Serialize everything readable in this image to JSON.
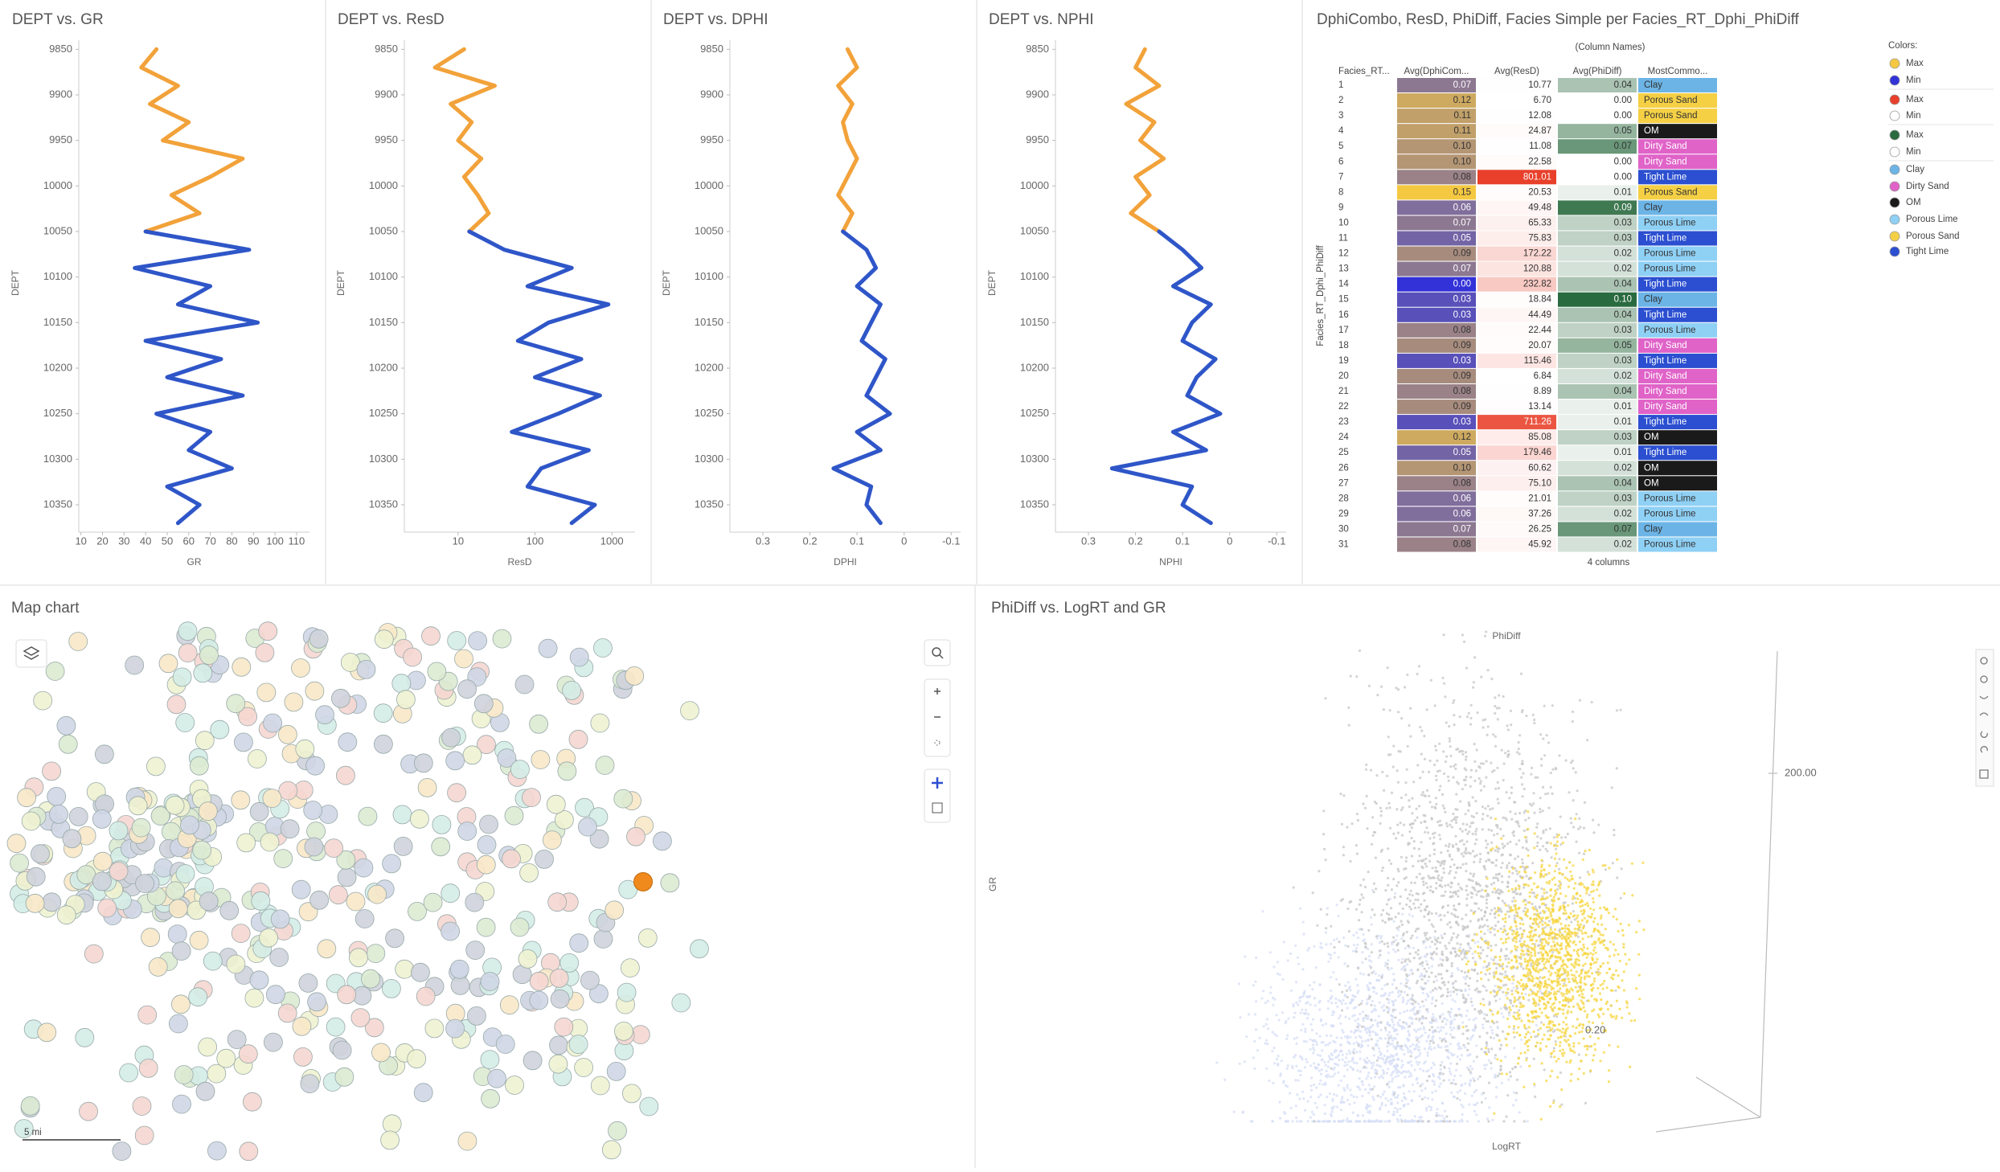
{
  "well_logs": [
    {
      "title": "DEPT vs. GR",
      "x_label": "GR",
      "y_label": "DEPT",
      "log_x": false,
      "xlim": [
        9,
        116
      ],
      "xticks": [
        10,
        20,
        30,
        40,
        50,
        60,
        70,
        80,
        90,
        100,
        110
      ],
      "ylim": [
        10380,
        9840
      ],
      "yticks": [
        9850,
        9900,
        9950,
        10000,
        10050,
        10100,
        10150,
        10200,
        10250,
        10300,
        10350
      ],
      "segments": [
        {
          "color": "#f2a23a",
          "depth": [
            9850,
            9870,
            9890,
            9910,
            9930,
            9950,
            9970,
            9990,
            10010,
            10030,
            10050
          ],
          "values": [
            45,
            38,
            55,
            42,
            60,
            48,
            85,
            70,
            52,
            65,
            40
          ]
        },
        {
          "color": "#2f56c8",
          "depth": [
            10050,
            10070,
            10090,
            10110,
            10130,
            10150,
            10170,
            10190,
            10210,
            10230,
            10250,
            10270,
            10290,
            10310,
            10330,
            10350,
            10370
          ],
          "values": [
            40,
            88,
            35,
            70,
            55,
            92,
            40,
            75,
            50,
            85,
            45,
            70,
            60,
            80,
            50,
            65,
            55
          ]
        }
      ]
    },
    {
      "title": "DEPT vs. ResD",
      "x_label": "ResD",
      "y_label": "DEPT",
      "log_x": true,
      "xlim": [
        2,
        2000
      ],
      "xticks": [
        10,
        100,
        1000
      ],
      "ylim": [
        10380,
        9840
      ],
      "yticks": [
        9850,
        9900,
        9950,
        10000,
        10050,
        10100,
        10150,
        10200,
        10250,
        10300,
        10350
      ],
      "segments": [
        {
          "color": "#f2a23a",
          "depth": [
            9850,
            9870,
            9890,
            9910,
            9930,
            9950,
            9970,
            9990,
            10010,
            10030,
            10050
          ],
          "values": [
            12,
            5,
            30,
            8,
            15,
            10,
            20,
            12,
            18,
            25,
            14
          ]
        },
        {
          "color": "#2f56c8",
          "depth": [
            10050,
            10070,
            10090,
            10110,
            10130,
            10150,
            10170,
            10190,
            10210,
            10230,
            10250,
            10270,
            10290,
            10310,
            10330,
            10350,
            10370
          ],
          "values": [
            14,
            40,
            300,
            80,
            900,
            150,
            60,
            400,
            100,
            700,
            200,
            50,
            500,
            120,
            80,
            600,
            300
          ]
        }
      ]
    },
    {
      "title": "DEPT vs. DPHI",
      "x_label": "DPHI",
      "y_label": "DEPT",
      "log_x": false,
      "xlim": [
        0.37,
        -0.12
      ],
      "xticks": [
        0.3,
        0.2,
        0.1,
        0,
        -0.1
      ],
      "ylim": [
        10380,
        9840
      ],
      "yticks": [
        9850,
        9900,
        9950,
        10000,
        10050,
        10100,
        10150,
        10200,
        10250,
        10300,
        10350
      ],
      "segments": [
        {
          "color": "#f2a23a",
          "depth": [
            9850,
            9870,
            9890,
            9910,
            9930,
            9950,
            9970,
            9990,
            10010,
            10030,
            10050
          ],
          "values": [
            0.12,
            0.1,
            0.14,
            0.11,
            0.13,
            0.12,
            0.1,
            0.12,
            0.14,
            0.11,
            0.13
          ]
        },
        {
          "color": "#2f56c8",
          "depth": [
            10050,
            10070,
            10090,
            10110,
            10130,
            10150,
            10170,
            10190,
            10210,
            10230,
            10250,
            10270,
            10290,
            10310,
            10330,
            10350,
            10370
          ],
          "values": [
            0.13,
            0.08,
            0.06,
            0.1,
            0.05,
            0.07,
            0.09,
            0.04,
            0.06,
            0.08,
            0.03,
            0.1,
            0.05,
            0.15,
            0.07,
            0.08,
            0.05
          ]
        }
      ]
    },
    {
      "title": "DEPT vs. NPHI",
      "x_label": "NPHI",
      "y_label": "DEPT",
      "log_x": false,
      "xlim": [
        0.37,
        -0.12
      ],
      "xticks": [
        0.3,
        0.2,
        0.1,
        0,
        -0.1
      ],
      "ylim": [
        10380,
        9840
      ],
      "yticks": [
        9850,
        9900,
        9950,
        10000,
        10050,
        10100,
        10150,
        10200,
        10250,
        10300,
        10350
      ],
      "segments": [
        {
          "color": "#f2a23a",
          "depth": [
            9850,
            9870,
            9890,
            9910,
            9930,
            9950,
            9970,
            9990,
            10010,
            10030,
            10050
          ],
          "values": [
            0.18,
            0.2,
            0.15,
            0.22,
            0.16,
            0.19,
            0.14,
            0.2,
            0.17,
            0.21,
            0.15
          ]
        },
        {
          "color": "#2f56c8",
          "depth": [
            10050,
            10070,
            10090,
            10110,
            10130,
            10150,
            10170,
            10190,
            10210,
            10230,
            10250,
            10270,
            10290,
            10310,
            10330,
            10350,
            10370
          ],
          "values": [
            0.15,
            0.1,
            0.06,
            0.12,
            0.04,
            0.08,
            0.1,
            0.03,
            0.07,
            0.09,
            0.02,
            0.12,
            0.05,
            0.25,
            0.08,
            0.1,
            0.04
          ]
        }
      ]
    }
  ],
  "table": {
    "title": "DphiCombo, ResD, PhiDiff, Facies Simple per Facies_RT_Dphi_PhiDiff",
    "column_header": "(Column Names)",
    "row_axis_label": "Facies_RT_Dphi_PhiDiff",
    "footer": "4 columns",
    "columns": [
      "Facies_RT...",
      "Avg(DphiCom...",
      "Avg(ResD)",
      "Avg(PhiDiff)",
      "MostCommo..."
    ],
    "rows": [
      [
        "1",
        "0.07",
        "10.77",
        "0.04",
        "Clay"
      ],
      [
        "2",
        "0.12",
        "6.70",
        "0.00",
        "Porous Sand"
      ],
      [
        "3",
        "0.11",
        "12.08",
        "0.00",
        "Porous Sand"
      ],
      [
        "4",
        "0.11",
        "24.87",
        "0.05",
        "OM"
      ],
      [
        "5",
        "0.10",
        "11.08",
        "0.07",
        "Dirty Sand"
      ],
      [
        "6",
        "0.10",
        "22.58",
        "0.00",
        "Dirty Sand"
      ],
      [
        "7",
        "0.08",
        "801.01",
        "0.00",
        "Tight Lime"
      ],
      [
        "8",
        "0.15",
        "20.53",
        "0.01",
        "Porous Sand"
      ],
      [
        "9",
        "0.06",
        "49.48",
        "0.09",
        "Clay"
      ],
      [
        "10",
        "0.07",
        "65.33",
        "0.03",
        "Porous Lime"
      ],
      [
        "11",
        "0.05",
        "75.83",
        "0.03",
        "Tight Lime"
      ],
      [
        "12",
        "0.09",
        "172.22",
        "0.02",
        "Porous Lime"
      ],
      [
        "13",
        "0.07",
        "120.88",
        "0.02",
        "Porous Lime"
      ],
      [
        "14",
        "0.00",
        "232.82",
        "0.04",
        "Tight Lime"
      ],
      [
        "15",
        "0.03",
        "18.84",
        "0.10",
        "Clay"
      ],
      [
        "16",
        "0.03",
        "44.49",
        "0.04",
        "Tight Lime"
      ],
      [
        "17",
        "0.08",
        "22.44",
        "0.03",
        "Porous Lime"
      ],
      [
        "18",
        "0.09",
        "20.07",
        "0.05",
        "Dirty Sand"
      ],
      [
        "19",
        "0.03",
        "115.46",
        "0.03",
        "Tight Lime"
      ],
      [
        "20",
        "0.09",
        "6.84",
        "0.02",
        "Dirty Sand"
      ],
      [
        "21",
        "0.08",
        "8.89",
        "0.04",
        "Dirty Sand"
      ],
      [
        "22",
        "0.09",
        "13.14",
        "0.01",
        "Dirty Sand"
      ],
      [
        "23",
        "0.03",
        "711.26",
        "0.01",
        "Tight Lime"
      ],
      [
        "24",
        "0.12",
        "85.08",
        "0.03",
        "OM"
      ],
      [
        "25",
        "0.05",
        "179.46",
        "0.01",
        "Tight Lime"
      ],
      [
        "26",
        "0.10",
        "60.62",
        "0.02",
        "OM"
      ],
      [
        "27",
        "0.08",
        "75.10",
        "0.04",
        "OM"
      ],
      [
        "28",
        "0.06",
        "21.01",
        "0.03",
        "Porous Lime"
      ],
      [
        "29",
        "0.06",
        "37.26",
        "0.02",
        "Porous Lime"
      ],
      [
        "30",
        "0.07",
        "26.25",
        "0.07",
        "Clay"
      ],
      [
        "31",
        "0.08",
        "45.92",
        "0.02",
        "Porous Lime"
      ]
    ]
  },
  "legend": {
    "title": "Colors:",
    "items": [
      {
        "label": "Max",
        "color": "#f5c842"
      },
      {
        "label": "Min",
        "color": "#3232d8"
      },
      {
        "label": "Max",
        "color": "#e8402a"
      },
      {
        "label": "Min",
        "color": "#ffffff"
      },
      {
        "label": "Max",
        "color": "#2a6a3f"
      },
      {
        "label": "Min",
        "color": "#ffffff"
      },
      {
        "label": "Clay",
        "color": "#6cb4e6"
      },
      {
        "label": "Dirty Sand",
        "color": "#e063c8"
      },
      {
        "label": "OM",
        "color": "#1a1a1a"
      },
      {
        "label": "Porous Lime",
        "color": "#8fd0f5"
      },
      {
        "label": "Porous Sand",
        "color": "#f5d045"
      },
      {
        "label": "Tight Lime",
        "color": "#2b4fd0"
      }
    ]
  },
  "map": {
    "title": "Map chart",
    "scale_label": "5 mi",
    "marker_colors": [
      "#cfd6e6",
      "#dcead2",
      "#f8e8c8",
      "#f5d6d0",
      "#d4ece6",
      "#cfd3dc",
      "#eef2d0"
    ],
    "highlight_color": "#f08a1c"
  },
  "scatter3d": {
    "title": "PhiDiff vs. LogRT and GR",
    "z_label": "PhiDiff",
    "y_label": "GR",
    "x_label": "LogRT",
    "tick_labels": [
      "200.00",
      "0.20"
    ],
    "point_colors": [
      "#d6ddf5",
      "#c6c6c6",
      "#f7d640"
    ]
  }
}
